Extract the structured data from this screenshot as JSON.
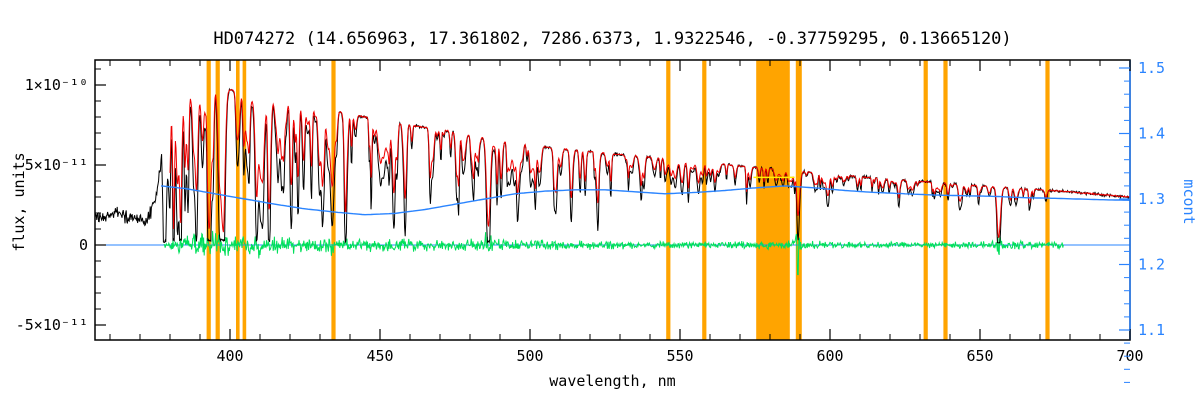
{
  "chart_data": {
    "type": "line",
    "title": "HD074272   (14.656963, 17.361802, 7286.6373, 1.9322546, -0.37759295, 0.13665120)",
    "xlabel": "wavelength, nm",
    "ylabel_left": "flux, units",
    "ylabel_right": "mcont",
    "x_range": [
      355,
      700
    ],
    "x_ticks": [
      400,
      450,
      500,
      550,
      600,
      650,
      700
    ],
    "x_minor_step": 10,
    "y_left_ticks": [
      {
        "value": 1e-10,
        "label": "1×10⁻¹⁰"
      },
      {
        "value": 5e-11,
        "label": "5×10⁻¹¹"
      },
      {
        "value": 0,
        "label": "0"
      },
      {
        "value": -5e-11,
        "label": "-5×10⁻¹¹"
      }
    ],
    "y_right_ticks": [
      "1.1",
      "1.2",
      "1.3",
      "1.4",
      "1.5"
    ],
    "y_right_range": [
      1.1,
      1.5
    ],
    "colors": {
      "spectrum": "#000000",
      "fit": "#ee0000",
      "residual": "#00e05a",
      "continuum": "#2a84ff",
      "masked": "#ffa400",
      "masked_fit": "#ffee00",
      "frame": "#000000"
    },
    "masked_bands_nm": [
      [
        392.2,
        393.6
      ],
      [
        395.2,
        396.6
      ],
      [
        402.0,
        403.2
      ],
      [
        404.2,
        405.4
      ],
      [
        433.8,
        435.2
      ],
      [
        545.4,
        546.8
      ],
      [
        557.4,
        558.8
      ],
      [
        575.4,
        586.6
      ],
      [
        588.6,
        590.6
      ],
      [
        631.2,
        632.6
      ],
      [
        637.8,
        639.2
      ],
      [
        671.8,
        673.2
      ]
    ],
    "envelope_anchors": [
      [
        355,
        0.18
      ],
      [
        362,
        0.2
      ],
      [
        366,
        0.17
      ],
      [
        370,
        0.16
      ],
      [
        373,
        0.17
      ],
      [
        375,
        0.28
      ],
      [
        377,
        0.52
      ],
      [
        379,
        0.8
      ],
      [
        381,
        0.95
      ],
      [
        383,
        1.0
      ],
      [
        388,
        1.0
      ],
      [
        393,
        1.0
      ],
      [
        400,
        0.97
      ],
      [
        410,
        0.94
      ],
      [
        420,
        0.9
      ],
      [
        430,
        0.86
      ],
      [
        440,
        0.82
      ],
      [
        450,
        0.78
      ],
      [
        460,
        0.75
      ],
      [
        470,
        0.72
      ],
      [
        480,
        0.69
      ],
      [
        490,
        0.655
      ],
      [
        500,
        0.625
      ],
      [
        510,
        0.6
      ],
      [
        520,
        0.585
      ],
      [
        530,
        0.565
      ],
      [
        540,
        0.55
      ],
      [
        550,
        0.53
      ],
      [
        560,
        0.512
      ],
      [
        570,
        0.495
      ],
      [
        580,
        0.478
      ],
      [
        590,
        0.462
      ],
      [
        600,
        0.442
      ],
      [
        610,
        0.427
      ],
      [
        620,
        0.412
      ],
      [
        630,
        0.398
      ],
      [
        640,
        0.384
      ],
      [
        650,
        0.37
      ],
      [
        660,
        0.358
      ],
      [
        670,
        0.346
      ],
      [
        680,
        0.332
      ],
      [
        690,
        0.316
      ],
      [
        700,
        0.3
      ]
    ],
    "continuum_anchors": [
      [
        377,
        1.32
      ],
      [
        385,
        1.316
      ],
      [
        395,
        1.308
      ],
      [
        405,
        1.3
      ],
      [
        415,
        1.292
      ],
      [
        425,
        1.285
      ],
      [
        435,
        1.28
      ],
      [
        445,
        1.276
      ],
      [
        455,
        1.278
      ],
      [
        465,
        1.284
      ],
      [
        475,
        1.292
      ],
      [
        485,
        1.3
      ],
      [
        495,
        1.308
      ],
      [
        505,
        1.312
      ],
      [
        515,
        1.314
      ],
      [
        525,
        1.314
      ],
      [
        535,
        1.311
      ],
      [
        545,
        1.308
      ],
      [
        555,
        1.31
      ],
      [
        565,
        1.313
      ],
      [
        575,
        1.317
      ],
      [
        585,
        1.32
      ],
      [
        595,
        1.317
      ],
      [
        605,
        1.313
      ],
      [
        615,
        1.31
      ],
      [
        625,
        1.308
      ],
      [
        635,
        1.306
      ],
      [
        645,
        1.305
      ],
      [
        655,
        1.304
      ],
      [
        665,
        1.302
      ],
      [
        675,
        1.301
      ],
      [
        690,
        1.299
      ],
      [
        700,
        1.298
      ]
    ],
    "absorption_lines": [
      {
        "c": 379.8,
        "w": 0.55,
        "d": 0.55
      },
      {
        "c": 381.2,
        "w": 0.45,
        "d": 0.5
      },
      {
        "c": 383.5,
        "w": 0.6,
        "d": 0.65
      },
      {
        "c": 386.0,
        "w": 0.45,
        "d": 0.45
      },
      {
        "c": 388.9,
        "w": 0.7,
        "d": 0.72
      },
      {
        "c": 393.4,
        "w": 0.8,
        "d": 0.92
      },
      {
        "c": 396.9,
        "w": 0.8,
        "d": 0.88
      },
      {
        "c": 404.6,
        "w": 0.45,
        "d": 0.5
      },
      {
        "c": 406.4,
        "w": 0.4,
        "d": 0.42
      },
      {
        "c": 410.2,
        "w": 0.8,
        "d": 0.8
      },
      {
        "c": 413.1,
        "w": 0.35,
        "d": 0.38
      },
      {
        "c": 417.2,
        "w": 0.35,
        "d": 0.32
      },
      {
        "c": 420.2,
        "w": 0.35,
        "d": 0.34
      },
      {
        "c": 422.7,
        "w": 0.45,
        "d": 0.52
      },
      {
        "c": 427.2,
        "w": 0.35,
        "d": 0.38
      },
      {
        "c": 430.8,
        "w": 0.4,
        "d": 0.45
      },
      {
        "c": 434.0,
        "w": 0.85,
        "d": 0.82
      },
      {
        "c": 438.4,
        "w": 0.45,
        "d": 0.52
      },
      {
        "c": 440.5,
        "w": 0.35,
        "d": 0.4
      },
      {
        "c": 447.1,
        "w": 0.35,
        "d": 0.34
      },
      {
        "c": 453.1,
        "w": 0.3,
        "d": 0.3
      },
      {
        "c": 458.3,
        "w": 0.3,
        "d": 0.28
      },
      {
        "c": 466.8,
        "w": 0.35,
        "d": 0.34
      },
      {
        "c": 470.3,
        "w": 0.3,
        "d": 0.26
      },
      {
        "c": 476.3,
        "w": 0.3,
        "d": 0.26
      },
      {
        "c": 486.1,
        "w": 0.85,
        "d": 0.84
      },
      {
        "c": 489.1,
        "w": 0.35,
        "d": 0.32
      },
      {
        "c": 492.4,
        "w": 0.3,
        "d": 0.3
      },
      {
        "c": 495.8,
        "w": 0.35,
        "d": 0.34
      },
      {
        "c": 501.8,
        "w": 0.3,
        "d": 0.3
      },
      {
        "c": 508.0,
        "w": 0.3,
        "d": 0.26
      },
      {
        "c": 516.7,
        "w": 0.45,
        "d": 0.46
      },
      {
        "c": 518.4,
        "w": 0.45,
        "d": 0.48
      },
      {
        "c": 522.7,
        "w": 0.3,
        "d": 0.28
      },
      {
        "c": 526.9,
        "w": 0.35,
        "d": 0.4
      },
      {
        "c": 532.8,
        "w": 0.3,
        "d": 0.3
      },
      {
        "c": 537.1,
        "w": 0.3,
        "d": 0.26
      },
      {
        "c": 543.5,
        "w": 0.3,
        "d": 0.24
      },
      {
        "c": 552.8,
        "w": 0.3,
        "d": 0.26
      },
      {
        "c": 558.8,
        "w": 0.3,
        "d": 0.22
      },
      {
        "c": 565.5,
        "w": 0.3,
        "d": 0.2
      },
      {
        "c": 578.0,
        "w": 0.3,
        "d": 0.2
      },
      {
        "c": 588.2,
        "w": 0.3,
        "d": 0.28
      },
      {
        "c": 589.3,
        "w": 0.55,
        "d": 0.88
      },
      {
        "c": 610.3,
        "w": 0.3,
        "d": 0.2
      },
      {
        "c": 616.2,
        "w": 0.3,
        "d": 0.24
      },
      {
        "c": 623.0,
        "w": 0.3,
        "d": 0.2
      },
      {
        "c": 634.7,
        "w": 0.3,
        "d": 0.2
      },
      {
        "c": 644.0,
        "w": 0.3,
        "d": 0.18
      },
      {
        "c": 649.5,
        "w": 0.3,
        "d": 0.2
      },
      {
        "c": 656.3,
        "w": 0.85,
        "d": 0.92
      },
      {
        "c": 667.8,
        "w": 0.3,
        "d": 0.18
      }
    ],
    "residual_amplitude_anchors": [
      [
        378,
        0.02
      ],
      [
        384,
        0.07
      ],
      [
        392,
        0.09
      ],
      [
        400,
        0.075
      ],
      [
        410,
        0.065
      ],
      [
        420,
        0.06
      ],
      [
        432,
        0.055
      ],
      [
        445,
        0.05
      ],
      [
        458,
        0.046
      ],
      [
        472,
        0.042
      ],
      [
        486,
        0.05
      ],
      [
        500,
        0.036
      ],
      [
        515,
        0.032
      ],
      [
        530,
        0.03
      ],
      [
        545,
        0.028
      ],
      [
        560,
        0.026
      ],
      [
        575,
        0.026
      ],
      [
        590,
        0.034
      ],
      [
        605,
        0.024
      ],
      [
        620,
        0.022
      ],
      [
        635,
        0.024
      ],
      [
        650,
        0.026
      ],
      [
        665,
        0.03
      ],
      [
        678,
        0.024
      ]
    ],
    "residual_x_range": [
      378,
      678
    ],
    "masked_fit_segment": {
      "x0": 574.5,
      "x1": 588.2,
      "m": 1.333
    },
    "zero_line_flux": 0,
    "noise_seed": 7,
    "weak_line_count": 260
  }
}
